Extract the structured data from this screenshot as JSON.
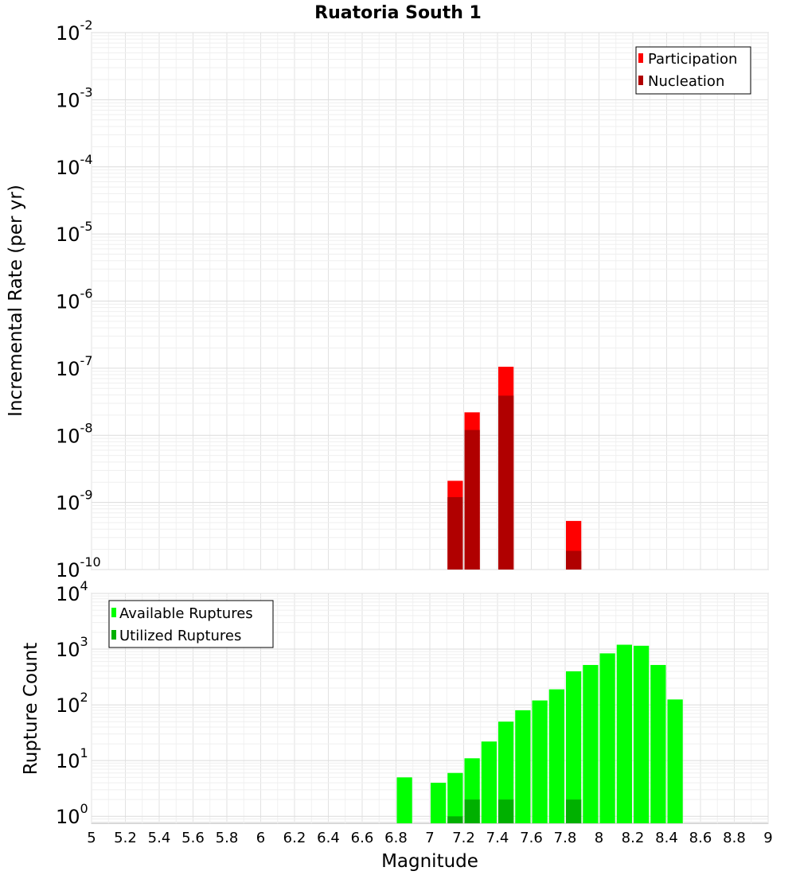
{
  "chart_data": [
    {
      "type": "bar",
      "title": "Ruatoria South 1",
      "xlabel": "Magnitude",
      "ylabel": "Incremental Rate (per yr)",
      "yscale": "log",
      "xlim": [
        5,
        9
      ],
      "ylim": [
        1e-10,
        0.01
      ],
      "bin_width": 0.1,
      "legend_position": "top-right",
      "series": [
        {
          "name": "Participation",
          "color": "#ff0000",
          "x": [
            7.15,
            7.25,
            7.45,
            7.85
          ],
          "values": [
            2.1e-09,
            2.2e-08,
            1.05e-07,
            5.3e-10
          ]
        },
        {
          "name": "Nucleation",
          "color": "#b00000",
          "x": [
            7.15,
            7.25,
            7.45,
            7.85
          ],
          "values": [
            1.2e-09,
            1.2e-08,
            3.9e-08,
            1.9e-10
          ]
        }
      ]
    },
    {
      "type": "bar",
      "title": "",
      "xlabel": "Magnitude",
      "ylabel": "Rupture Count",
      "yscale": "log",
      "xlim": [
        5,
        9
      ],
      "ylim": [
        0.75,
        10000
      ],
      "bin_width": 0.1,
      "legend_position": "top-left",
      "series": [
        {
          "name": "Available Ruptures",
          "color": "#00ff00",
          "x": [
            6.85,
            7.05,
            7.15,
            7.25,
            7.35,
            7.45,
            7.55,
            7.65,
            7.75,
            7.85,
            7.95,
            8.05,
            8.15,
            8.25,
            8.35,
            8.45
          ],
          "values": [
            5,
            4,
            6,
            11,
            22,
            50,
            80,
            120,
            190,
            400,
            520,
            840,
            1200,
            1150,
            520,
            125
          ]
        },
        {
          "name": "Utilized Ruptures",
          "color": "#00b000",
          "x": [
            7.15,
            7.25,
            7.45,
            7.85
          ],
          "values": [
            1,
            2,
            2,
            2
          ]
        }
      ]
    }
  ],
  "x_ticks": [
    "5",
    "5.2",
    "5.4",
    "5.6",
    "5.8",
    "6",
    "6.2",
    "6.4",
    "6.6",
    "6.8",
    "7",
    "7.2",
    "7.4",
    "7.6",
    "7.8",
    "8",
    "8.2",
    "8.4",
    "8.6",
    "8.8",
    "9"
  ],
  "top_y_ticks": [
    {
      "base": "10",
      "exp": "-2"
    },
    {
      "base": "10",
      "exp": "-3"
    },
    {
      "base": "10",
      "exp": "-4"
    },
    {
      "base": "10",
      "exp": "-5"
    },
    {
      "base": "10",
      "exp": "-6"
    },
    {
      "base": "10",
      "exp": "-7"
    },
    {
      "base": "10",
      "exp": "-8"
    },
    {
      "base": "10",
      "exp": "-9"
    },
    {
      "base": "10",
      "exp": "-10"
    }
  ],
  "bottom_y_ticks": [
    {
      "base": "10",
      "exp": "4"
    },
    {
      "base": "10",
      "exp": "3"
    },
    {
      "base": "10",
      "exp": "2"
    },
    {
      "base": "10",
      "exp": "1"
    },
    {
      "base": "10",
      "exp": "0"
    }
  ]
}
